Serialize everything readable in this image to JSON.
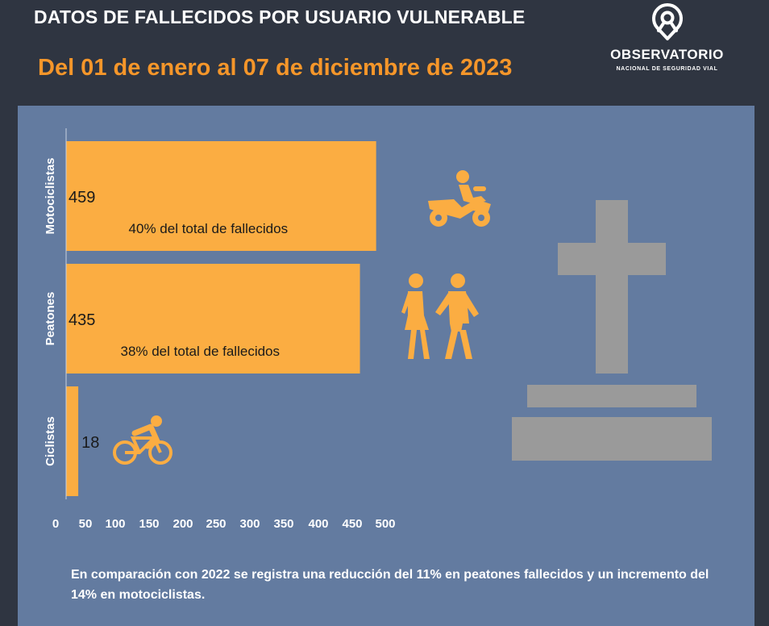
{
  "header": {
    "title": "DATOS DE FALLECIDOS POR USUARIO VULNERABLE",
    "subtitle": "Del 01 de enero al 07 de diciembre de 2023"
  },
  "logo": {
    "name": "OBSERVATORIO",
    "subtitle": "NACIONAL DE SEGURIDAD VIAL"
  },
  "colors": {
    "page_bg": "#2f3541",
    "panel_bg": "#637ba0",
    "bar": "#fbad42",
    "accent": "#f5962a",
    "grave": "#9a9a9a"
  },
  "icons": [
    "motorcycle-icon",
    "pedestrians-icon",
    "bicycle-icon",
    "grave-cross-icon",
    "map-pin-logo-icon"
  ],
  "chart_data": {
    "type": "bar",
    "orientation": "horizontal",
    "categories": [
      "Motociclistas",
      "Peatones",
      "Ciclistas"
    ],
    "values": [
      459,
      435,
      18
    ],
    "data_labels": [
      "459",
      "435",
      "18"
    ],
    "annotations": [
      "40% del total de fallecidos",
      "38% del total de fallecidos",
      ""
    ],
    "xticks": [
      0,
      50,
      100,
      150,
      200,
      250,
      300,
      350,
      400,
      450,
      500
    ],
    "xlim": [
      0,
      500
    ],
    "grid": false,
    "legend": "none"
  },
  "footnote": "En comparación con 2022 se registra una reducción del 11% en peatones fallecidos y un incremento del 14% en motociclistas."
}
